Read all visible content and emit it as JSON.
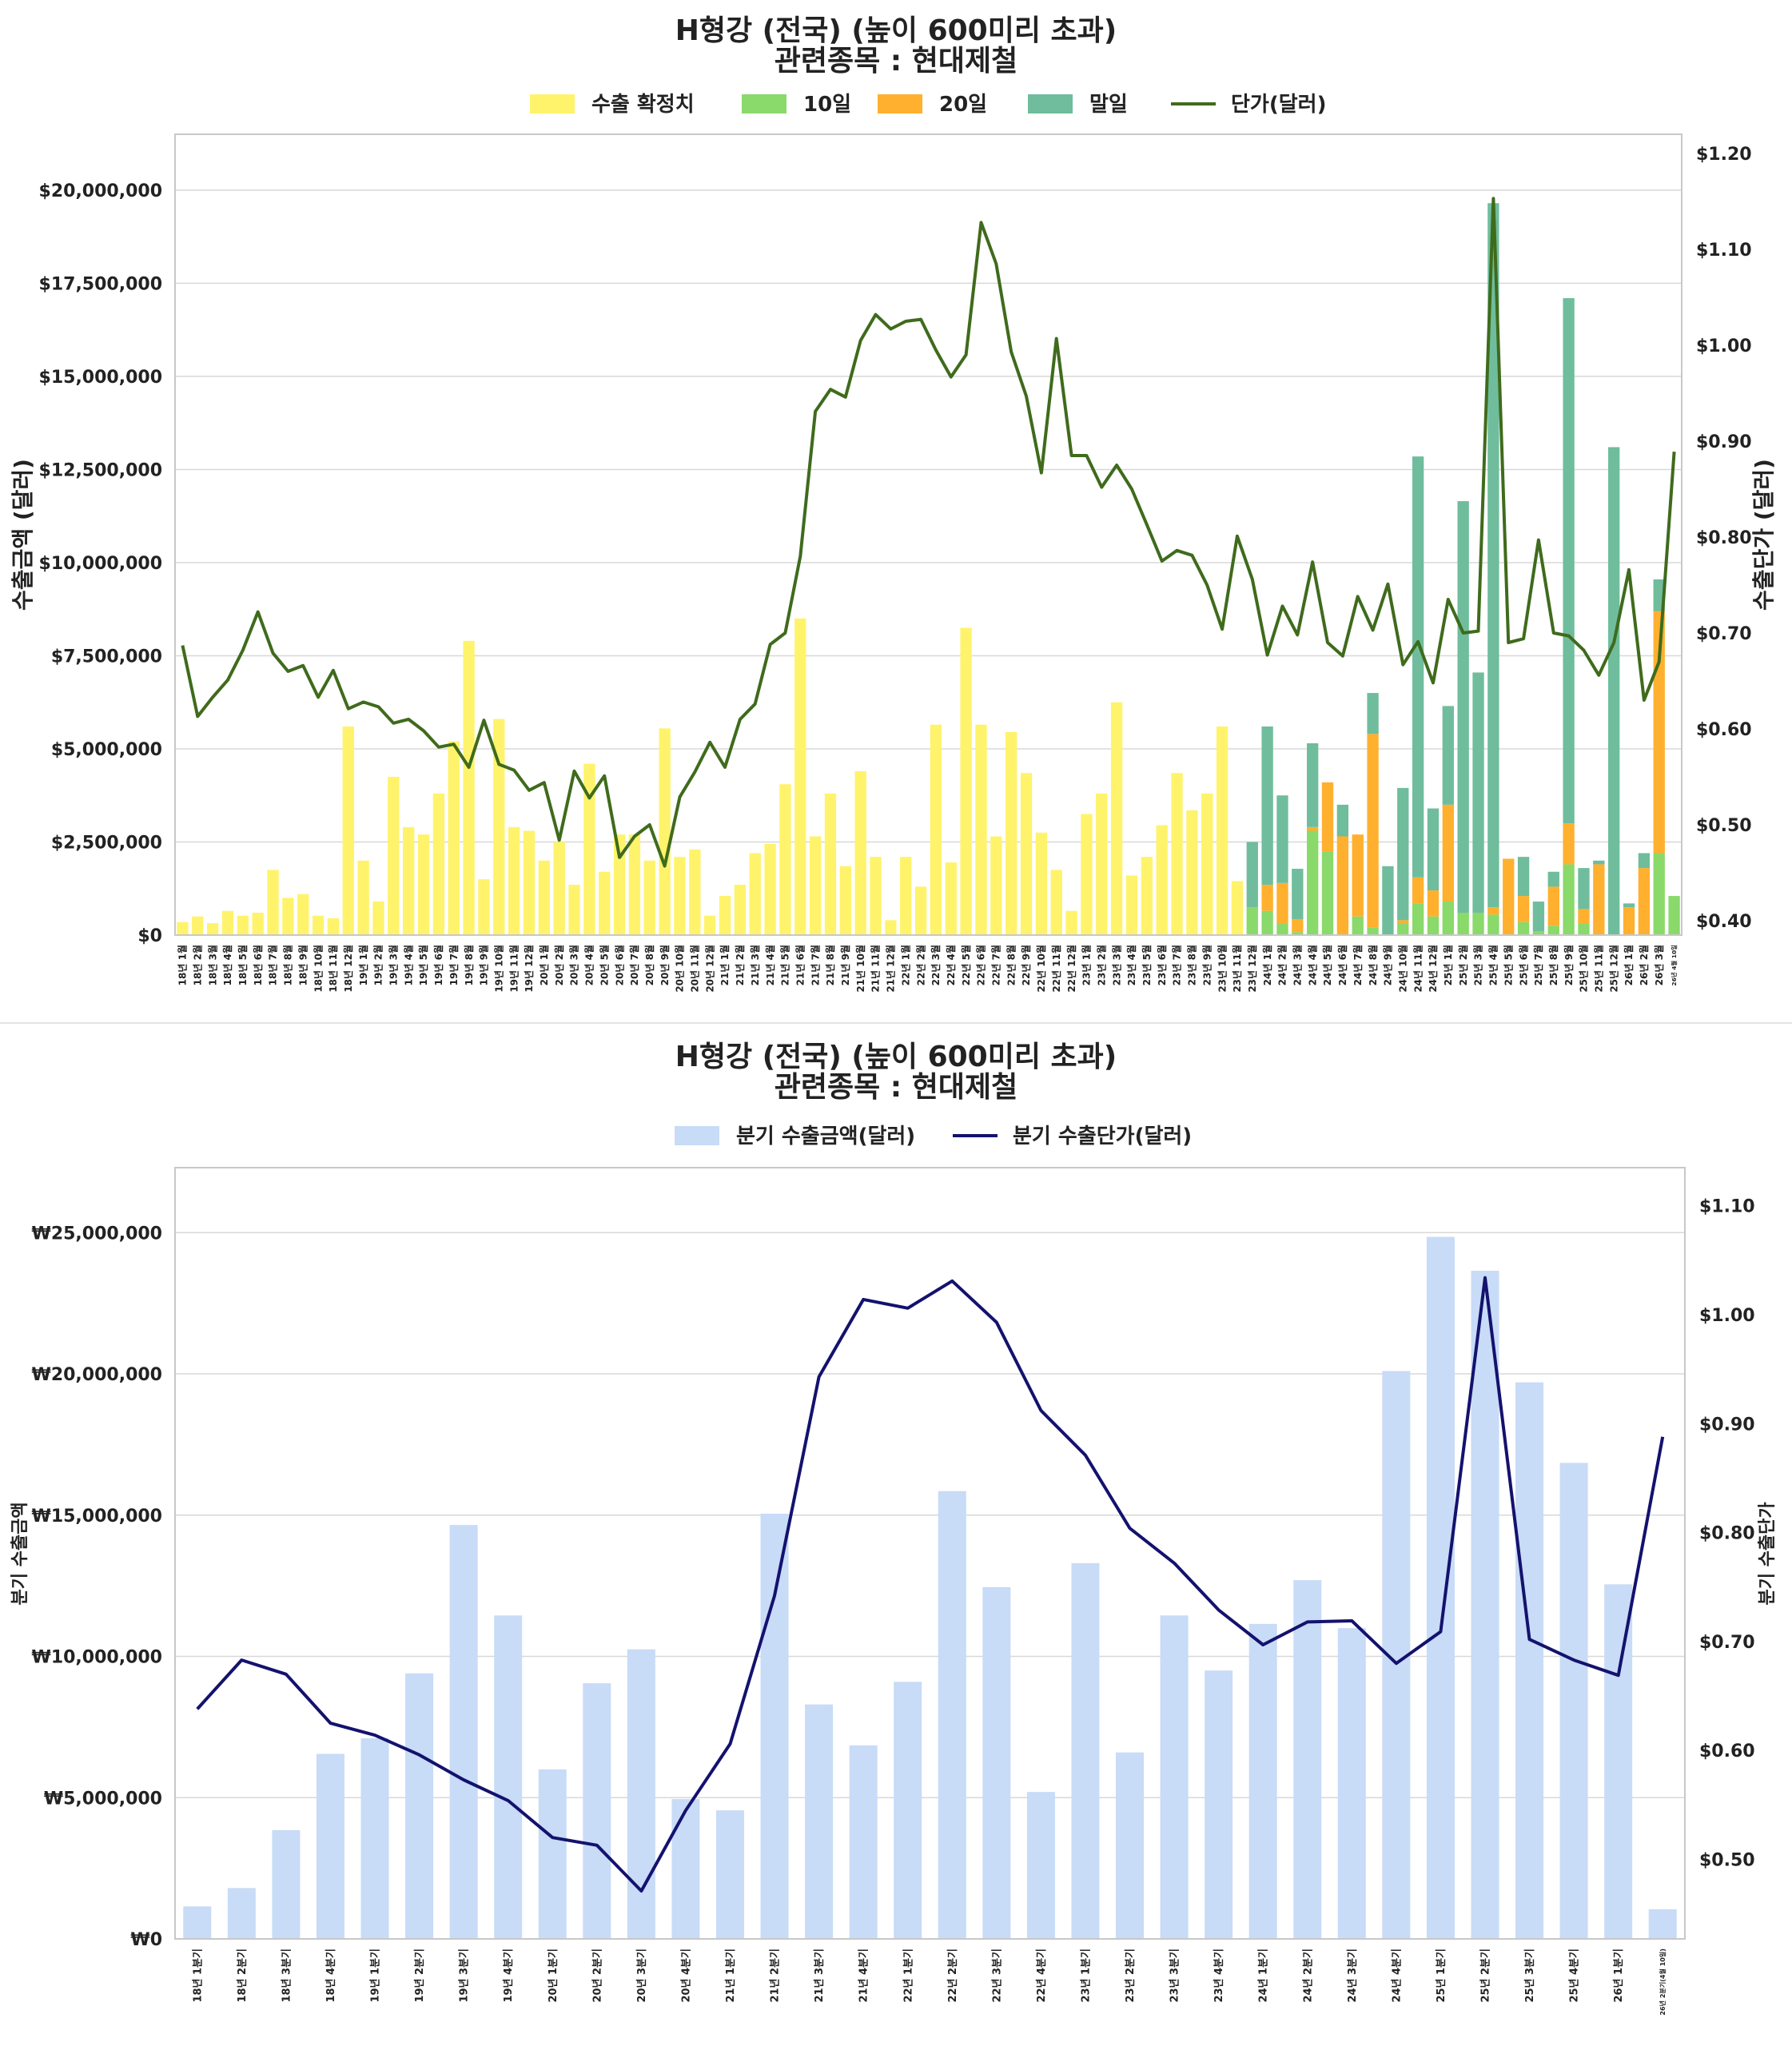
{
  "chart_data": [
    {
      "type": "bar",
      "title": "H형강 (전국) (높이 600미리 초과)",
      "subtitle": "관련종목 : 현대제철",
      "ylabel": "수출금액 (달러)",
      "y2label": "수출단가 (달러)",
      "ylim": [
        0,
        21500000
      ],
      "y2lim": [
        0.385,
        1.22
      ],
      "yticks": [
        "$0",
        "$2,500,000",
        "$5,000,000",
        "$7,500,000",
        "$10,000,000",
        "$12,500,000",
        "$15,000,000",
        "$17,500,000",
        "$20,000,000"
      ],
      "ytick_values": [
        0,
        2500000,
        5000000,
        7500000,
        10000000,
        12500000,
        15000000,
        17500000,
        20000000
      ],
      "y2ticks": [
        "$0.40",
        "$0.50",
        "$0.60",
        "$0.70",
        "$0.80",
        "$0.90",
        "$1.00",
        "$1.10",
        "$1.20"
      ],
      "y2tick_values": [
        0.4,
        0.5,
        0.6,
        0.7,
        0.8,
        0.9,
        1.0,
        1.1,
        1.2
      ],
      "legend": [
        "수출 확정치",
        "10일",
        "20일",
        "말일",
        "단가(달러)"
      ],
      "legend_position": "top-center",
      "colors": {
        "confirmed": "#fff36b",
        "d10": "#8ad96b",
        "d20": "#ffb02e",
        "end": "#6fbd9c",
        "line": "#3f6b1c"
      },
      "categories": [
        "18년 1월",
        "18년 2월",
        "18년 3월",
        "18년 4월",
        "18년 5월",
        "18년 6월",
        "18년 7월",
        "18년 8월",
        "18년 9월",
        "18년 10월",
        "18년 11월",
        "18년 12월",
        "19년 1월",
        "19년 2월",
        "19년 3월",
        "19년 4월",
        "19년 5월",
        "19년 6월",
        "19년 7월",
        "19년 8월",
        "19년 9월",
        "19년 10월",
        "19년 11월",
        "19년 12월",
        "20년 1월",
        "20년 2월",
        "20년 3월",
        "20년 4월",
        "20년 5월",
        "20년 6월",
        "20년 7월",
        "20년 8월",
        "20년 9월",
        "20년 10월",
        "20년 11월",
        "20년 12월",
        "21년 1월",
        "21년 2월",
        "21년 3월",
        "21년 4월",
        "21년 5월",
        "21년 6월",
        "21년 7월",
        "21년 8월",
        "21년 9월",
        "21년 10월",
        "21년 11월",
        "21년 12월",
        "22년 1월",
        "22년 2월",
        "22년 3월",
        "22년 4월",
        "22년 5월",
        "22년 6월",
        "22년 7월",
        "22년 8월",
        "22년 9월",
        "22년 10월",
        "22년 11월",
        "22년 12월",
        "23년 1월",
        "23년 2월",
        "23년 3월",
        "23년 4월",
        "23년 5월",
        "23년 6월",
        "23년 7월",
        "23년 8월",
        "23년 9월",
        "23년 10월",
        "23년 11월",
        "23년 12월",
        "24년 1월",
        "24년 2월",
        "24년 3월",
        "24년 4월",
        "24년 5월",
        "24년 6월",
        "24년 7월",
        "24년 8월",
        "24년 9월",
        "24년 10월",
        "24년 11월",
        "24년 12월",
        "25년 1월",
        "25년 2월",
        "25년 3월",
        "25년 4월",
        "25년 5월",
        "25년 6월",
        "25년 7월",
        "25년 8월",
        "25년 9월",
        "25년 10월",
        "25년 11월",
        "25년 12월",
        "26년 1월",
        "26년 2월",
        "26년 3월",
        "26년 4월 10일"
      ],
      "series": [
        {
          "name": "수출 확정치",
          "values": [
            350000,
            500000,
            320000,
            650000,
            520000,
            600000,
            1750000,
            1000000,
            1100000,
            520000,
            450000,
            5600000,
            2000000,
            900000,
            4250000,
            2900000,
            2700000,
            3800000,
            5200000,
            7900000,
            1500000,
            5800000,
            2900000,
            2800000,
            2000000,
            2500000,
            1350000,
            4600000,
            1700000,
            2700000,
            2700000,
            2000000,
            5550000,
            2100000,
            2300000,
            520000,
            1050000,
            1350000,
            2200000,
            2450000,
            4050000,
            8500000,
            2650000,
            3800000,
            1850000,
            4400000,
            2100000,
            400000,
            2100000,
            1300000,
            5650000,
            1950000,
            8250000,
            5650000,
            2650000,
            5450000,
            4350000,
            2750000,
            1750000,
            650000,
            3250000,
            3800000,
            6250000,
            1600000,
            2100000,
            2950000,
            4350000,
            3350000,
            3800000,
            5600000,
            1450000,
            0,
            0,
            0,
            0,
            0,
            0,
            0,
            0,
            0,
            0,
            0,
            0,
            0,
            0,
            0,
            0,
            0,
            0,
            0,
            0,
            0,
            0,
            0,
            0,
            0,
            0,
            0,
            0,
            0
          ]
        },
        {
          "name": "10일",
          "values": [
            0,
            0,
            0,
            0,
            0,
            0,
            0,
            0,
            0,
            0,
            0,
            0,
            0,
            0,
            0,
            0,
            0,
            0,
            0,
            0,
            0,
            0,
            0,
            0,
            0,
            0,
            0,
            0,
            0,
            0,
            0,
            0,
            0,
            0,
            0,
            0,
            0,
            0,
            0,
            0,
            0,
            0,
            0,
            0,
            0,
            0,
            0,
            0,
            0,
            0,
            0,
            0,
            0,
            0,
            0,
            0,
            0,
            0,
            0,
            0,
            0,
            0,
            0,
            0,
            0,
            0,
            0,
            0,
            0,
            0,
            0,
            750000,
            650000,
            300000,
            80000,
            2800000,
            2250000,
            0,
            500000,
            200000,
            0,
            300000,
            850000,
            500000,
            900000,
            600000,
            600000,
            550000,
            0,
            350000,
            100000,
            250000,
            1900000,
            300000,
            0,
            0,
            0,
            0,
            2200000,
            1050000
          ]
        },
        {
          "name": "20일",
          "values": [
            0,
            0,
            0,
            0,
            0,
            0,
            0,
            0,
            0,
            0,
            0,
            0,
            0,
            0,
            0,
            0,
            0,
            0,
            0,
            0,
            0,
            0,
            0,
            0,
            0,
            0,
            0,
            0,
            0,
            0,
            0,
            0,
            0,
            0,
            0,
            0,
            0,
            0,
            0,
            0,
            0,
            0,
            0,
            0,
            0,
            0,
            0,
            0,
            0,
            0,
            0,
            0,
            0,
            0,
            0,
            0,
            0,
            0,
            0,
            0,
            0,
            0,
            0,
            0,
            0,
            0,
            0,
            0,
            0,
            0,
            0,
            0,
            700000,
            1100000,
            350000,
            100000,
            1850000,
            2650000,
            2200000,
            5200000,
            0,
            100000,
            700000,
            700000,
            2600000,
            0,
            0,
            200000,
            2050000,
            700000,
            0,
            1050000,
            1100000,
            400000,
            1900000,
            0,
            750000,
            1800000,
            6500000,
            0
          ]
        },
        {
          "name": "말일",
          "values": [
            0,
            0,
            0,
            0,
            0,
            0,
            0,
            0,
            0,
            0,
            0,
            0,
            0,
            0,
            0,
            0,
            0,
            0,
            0,
            0,
            0,
            0,
            0,
            0,
            0,
            0,
            0,
            0,
            0,
            0,
            0,
            0,
            0,
            0,
            0,
            0,
            0,
            0,
            0,
            0,
            0,
            0,
            0,
            0,
            0,
            0,
            0,
            0,
            0,
            0,
            0,
            0,
            0,
            0,
            0,
            0,
            0,
            0,
            0,
            0,
            0,
            0,
            0,
            0,
            0,
            0,
            0,
            0,
            0,
            0,
            0,
            1750000,
            4250000,
            2350000,
            1350000,
            2250000,
            0,
            850000,
            0,
            1100000,
            1850000,
            3550000,
            11300000,
            2200000,
            2650000,
            11050000,
            6450000,
            18900000,
            0,
            1050000,
            800000,
            400000,
            14100000,
            1100000,
            100000,
            13100000,
            100000,
            400000,
            850000,
            0
          ]
        },
        {
          "name": "단가(달러)",
          "axis": "right",
          "values": [
            0.687,
            0.613,
            0.633,
            0.651,
            0.682,
            0.722,
            0.679,
            0.66,
            0.666,
            0.633,
            0.661,
            0.621,
            0.628,
            0.623,
            0.606,
            0.61,
            0.598,
            0.581,
            0.584,
            0.56,
            0.609,
            0.563,
            0.557,
            0.536,
            0.544,
            0.484,
            0.556,
            0.528,
            0.551,
            0.466,
            0.488,
            0.5,
            0.457,
            0.529,
            0.555,
            0.586,
            0.56,
            0.61,
            0.626,
            0.688,
            0.7,
            0.78,
            0.931,
            0.954,
            0.946,
            1.005,
            1.032,
            1.017,
            1.025,
            1.027,
            0.995,
            0.967,
            0.99,
            1.128,
            1.085,
            0.993,
            0.947,
            0.867,
            1.007,
            0.885,
            0.885,
            0.852,
            0.875,
            0.85,
            0.813,
            0.775,
            0.786,
            0.781,
            0.75,
            0.704,
            0.801,
            0.756,
            0.677,
            0.728,
            0.698,
            0.774,
            0.69,
            0.676,
            0.738,
            0.703,
            0.751,
            0.667,
            0.691,
            0.648,
            0.735,
            0.7,
            0.702,
            1.153,
            0.69,
            0.694,
            0.797,
            0.7,
            0.697,
            0.682,
            0.656,
            0.69,
            0.766,
            0.63,
            0.67,
            0.889
          ]
        }
      ]
    },
    {
      "type": "bar",
      "title": "H형강 (전국) (높이 600미리 초과)",
      "subtitle": "관련종목 : 현대제철",
      "ylabel": "분기 수출금액",
      "y2label": "분기 수출단가",
      "ylim": [
        0,
        27300000
      ],
      "y2lim": [
        0.427,
        1.135
      ],
      "yticks": [
        "₩0",
        "₩5,000,000",
        "₩10,000,000",
        "₩15,000,000",
        "₩20,000,000",
        "₩25,000,000"
      ],
      "ytick_values": [
        0,
        5000000,
        10000000,
        15000000,
        20000000,
        25000000
      ],
      "y2ticks": [
        "$0.50",
        "$0.60",
        "$0.70",
        "$0.80",
        "$0.90",
        "$1.00",
        "$1.10"
      ],
      "y2tick_values": [
        0.5,
        0.6,
        0.7,
        0.8,
        0.9,
        1.0,
        1.1
      ],
      "legend": [
        "분기 수출금액(달러)",
        "분기 수출단가(달러)"
      ],
      "legend_position": "top-center",
      "colors": {
        "bar": "#c8dbf7",
        "line": "#14126e"
      },
      "categories": [
        "18년 1분기",
        "18년 2분기",
        "18년 3분기",
        "18년 4분기",
        "19년 1분기",
        "19년 2분기",
        "19년 3분기",
        "19년 4분기",
        "20년 1분기",
        "20년 2분기",
        "20년 3분기",
        "20년 4분기",
        "21년 1분기",
        "21년 2분기",
        "21년 3분기",
        "21년 4분기",
        "22년 1분기",
        "22년 2분기",
        "22년 3분기",
        "22년 4분기",
        "23년 1분기",
        "23년 2분기",
        "23년 3분기",
        "23년 4분기",
        "24년 1분기",
        "24년 2분기",
        "24년 3분기",
        "24년 4분기",
        "25년 1분기",
        "25년 2분기",
        "25년 3분기",
        "25년 4분기",
        "26년 1분기",
        "26년 2분기(4월 10일)"
      ],
      "series": [
        {
          "name": "분기 수출금액(달러)",
          "values": [
            1150000,
            1800000,
            3850000,
            6550000,
            7100000,
            9400000,
            14650000,
            11450000,
            6000000,
            9050000,
            10250000,
            4950000,
            4550000,
            15050000,
            8300000,
            6850000,
            9100000,
            15850000,
            12450000,
            5200000,
            13300000,
            6600000,
            11450000,
            9500000,
            11150000,
            12700000,
            11000000,
            20100000,
            24850000,
            23650000,
            19700000,
            16850000,
            12550000,
            1050000
          ]
        },
        {
          "name": "분기 수출단가(달러)",
          "axis": "right",
          "values": [
            0.638,
            0.683,
            0.67,
            0.625,
            0.614,
            0.596,
            0.573,
            0.554,
            0.52,
            0.513,
            0.471,
            0.545,
            0.606,
            0.742,
            0.943,
            1.014,
            1.006,
            1.031,
            0.993,
            0.912,
            0.871,
            0.804,
            0.772,
            0.729,
            0.697,
            0.718,
            0.719,
            0.68,
            0.709,
            1.034,
            0.702,
            0.683,
            0.669,
            0.888
          ]
        }
      ]
    }
  ]
}
